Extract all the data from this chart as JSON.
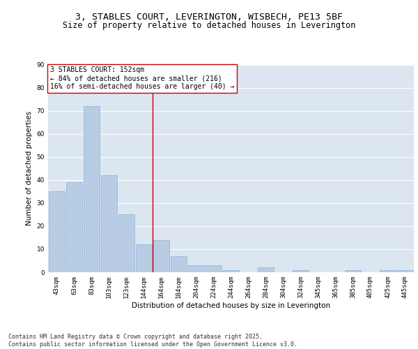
{
  "title_line1": "3, STABLES COURT, LEVERINGTON, WISBECH, PE13 5BF",
  "title_line2": "Size of property relative to detached houses in Leverington",
  "xlabel": "Distribution of detached houses by size in Leverington",
  "ylabel": "Number of detached properties",
  "categories": [
    "43sqm",
    "63sqm",
    "83sqm",
    "103sqm",
    "123sqm",
    "144sqm",
    "164sqm",
    "184sqm",
    "204sqm",
    "224sqm",
    "244sqm",
    "264sqm",
    "284sqm",
    "304sqm",
    "324sqm",
    "345sqm",
    "365sqm",
    "385sqm",
    "405sqm",
    "425sqm",
    "445sqm"
  ],
  "values": [
    35,
    39,
    72,
    42,
    25,
    12,
    14,
    7,
    3,
    3,
    1,
    0,
    2,
    0,
    1,
    0,
    0,
    1,
    0,
    1,
    1
  ],
  "bar_color": "#b8cce4",
  "bar_edge_color": "#8db4d9",
  "bg_color": "#dce6f1",
  "grid_color": "#ffffff",
  "vline_x_index": 5.5,
  "vline_color": "#cc0000",
  "annotation_text": "3 STABLES COURT: 152sqm\n← 84% of detached houses are smaller (216)\n16% of semi-detached houses are larger (40) →",
  "annotation_box_color": "#ffffff",
  "annotation_box_edge": "#cc0000",
  "ylim": [
    0,
    90
  ],
  "yticks": [
    0,
    10,
    20,
    30,
    40,
    50,
    60,
    70,
    80,
    90
  ],
  "footer_text": "Contains HM Land Registry data © Crown copyright and database right 2025.\nContains public sector information licensed under the Open Government Licence v3.0.",
  "title_fontsize": 9.5,
  "subtitle_fontsize": 8.5,
  "axis_label_fontsize": 7.5,
  "tick_fontsize": 6.5,
  "annotation_fontsize": 7,
  "footer_fontsize": 6
}
